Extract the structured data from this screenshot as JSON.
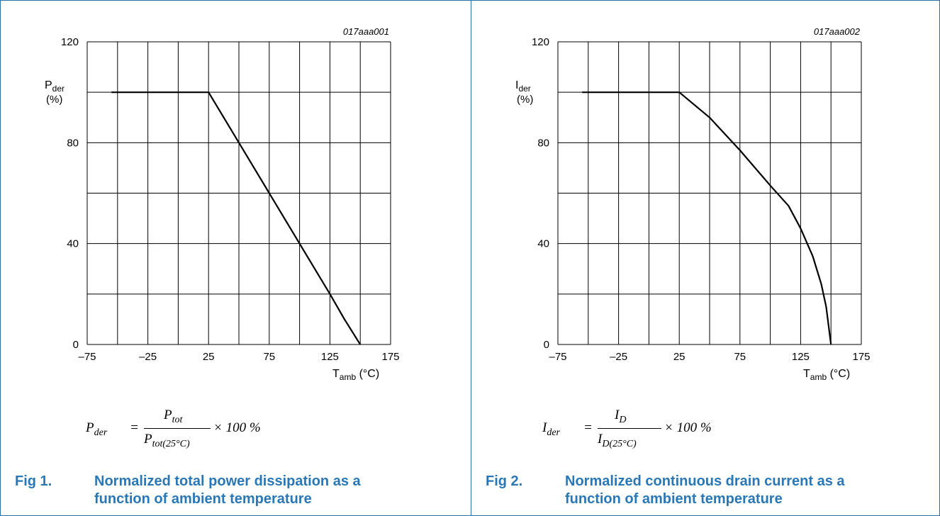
{
  "figures": [
    {
      "code": "017aaa001",
      "ylabel": {
        "main": "P",
        "sub": "der",
        "unit": "(%)"
      },
      "xlabel": {
        "main": "T",
        "sub": "amb",
        "unit": " (°C)"
      },
      "formula": {
        "lhs_main": "P",
        "lhs_sub": "der",
        "num_main": "P",
        "num_sub": "tot",
        "den_main": "P",
        "den_sub": "tot(25°C)",
        "rhs": "× 100 %"
      },
      "caption_num": "Fig 1.",
      "caption_text": "Normalized total power dissipation as a function of ambient temperature"
    },
    {
      "code": "017aaa002",
      "ylabel": {
        "main": "I",
        "sub": "der",
        "unit": "(%)"
      },
      "xlabel": {
        "main": "T",
        "sub": "amb",
        "unit": " (°C)"
      },
      "formula": {
        "lhs_main": "I",
        "lhs_sub": "der",
        "num_main": "I",
        "num_sub": "D",
        "den_main": "I",
        "den_sub": "D(25°C)",
        "rhs": "× 100 %"
      },
      "caption_num": "Fig 2.",
      "caption_text": "Normalized continuous drain current as a function of ambient temperature"
    }
  ],
  "chart_data": [
    {
      "type": "line",
      "xlim": [
        -75,
        175
      ],
      "ylim": [
        0,
        120
      ],
      "x_ticks": [
        -75,
        -25,
        25,
        75,
        125,
        175
      ],
      "x_tick_labels": [
        "–75",
        "–25",
        "25",
        "75",
        "125",
        "175"
      ],
      "y_ticks": [
        0,
        40,
        80,
        120
      ],
      "x_grid": [
        -75,
        -50,
        -25,
        0,
        25,
        50,
        75,
        100,
        125,
        150,
        175
      ],
      "y_grid": [
        0,
        20,
        40,
        60,
        80,
        100,
        120
      ],
      "grid": true,
      "series": [
        {
          "x": [
            -55,
            25,
            50,
            75,
            100,
            125,
            137,
            150
          ],
          "y": [
            100,
            100,
            80,
            60,
            40,
            20,
            10,
            0
          ]
        }
      ]
    },
    {
      "type": "line",
      "xlim": [
        -75,
        175
      ],
      "ylim": [
        0,
        120
      ],
      "x_ticks": [
        -75,
        -25,
        25,
        75,
        125,
        175
      ],
      "x_tick_labels": [
        "–75",
        "–25",
        "25",
        "75",
        "125",
        "175"
      ],
      "y_ticks": [
        0,
        40,
        80,
        120
      ],
      "x_grid": [
        -75,
        -50,
        -25,
        0,
        25,
        50,
        75,
        100,
        125,
        150,
        175
      ],
      "y_grid": [
        0,
        20,
        40,
        60,
        80,
        100,
        120
      ],
      "grid": true,
      "series": [
        {
          "x": [
            -55,
            25,
            50,
            75,
            100,
            115,
            125,
            135,
            142,
            146,
            150
          ],
          "y": [
            100,
            100,
            90,
            77,
            63,
            55,
            46,
            35,
            24,
            15,
            0
          ]
        }
      ]
    }
  ]
}
